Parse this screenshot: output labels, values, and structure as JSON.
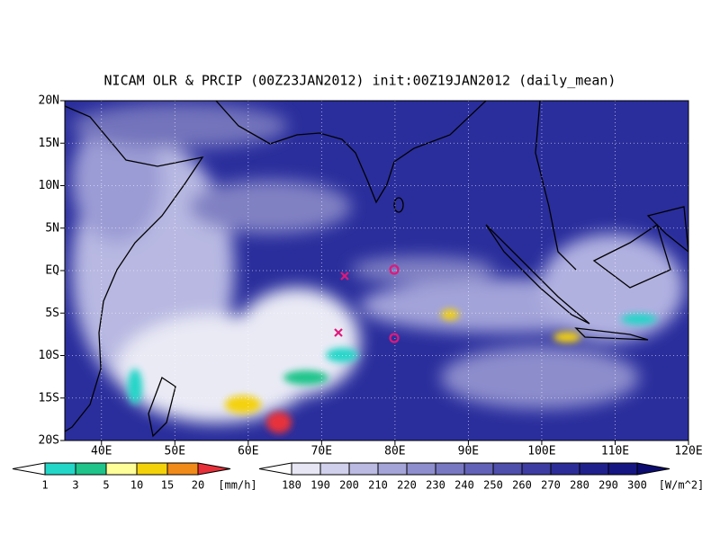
{
  "title": "NICAM OLR & PRCIP (00Z23JAN2012) init:00Z19JAN2012 (daily_mean)",
  "lat_labels": [
    "20N",
    "15N",
    "10N",
    "5N",
    "EQ",
    "5S",
    "10S",
    "15S",
    "20S"
  ],
  "lon_labels": [
    "40E",
    "50E",
    "60E",
    "70E",
    "80E",
    "90E",
    "100E",
    "110E",
    "120E"
  ],
  "precip_legend": {
    "labels": [
      "1",
      "3",
      "5",
      "10",
      "15",
      "20"
    ],
    "unit": "[mm/h]",
    "colors": [
      "#ffffff",
      "#22d6c8",
      "#1ec48a",
      "#ffff99",
      "#f4d20a",
      "#f08a18",
      "#e8303a"
    ]
  },
  "olr_legend": {
    "labels": [
      "180",
      "190",
      "200",
      "210",
      "220",
      "230",
      "240",
      "250",
      "260",
      "270",
      "280",
      "290",
      "300"
    ],
    "unit": "[W/m^2]",
    "colors": [
      "#ffffff",
      "#e6e6f4",
      "#d0d0ec",
      "#babae2",
      "#a4a4d8",
      "#8e8ece",
      "#7878c2",
      "#6262b8",
      "#4e4eac",
      "#3c3ca2",
      "#2c2c98",
      "#20208c",
      "#161682",
      "#0c0c70"
    ]
  }
}
